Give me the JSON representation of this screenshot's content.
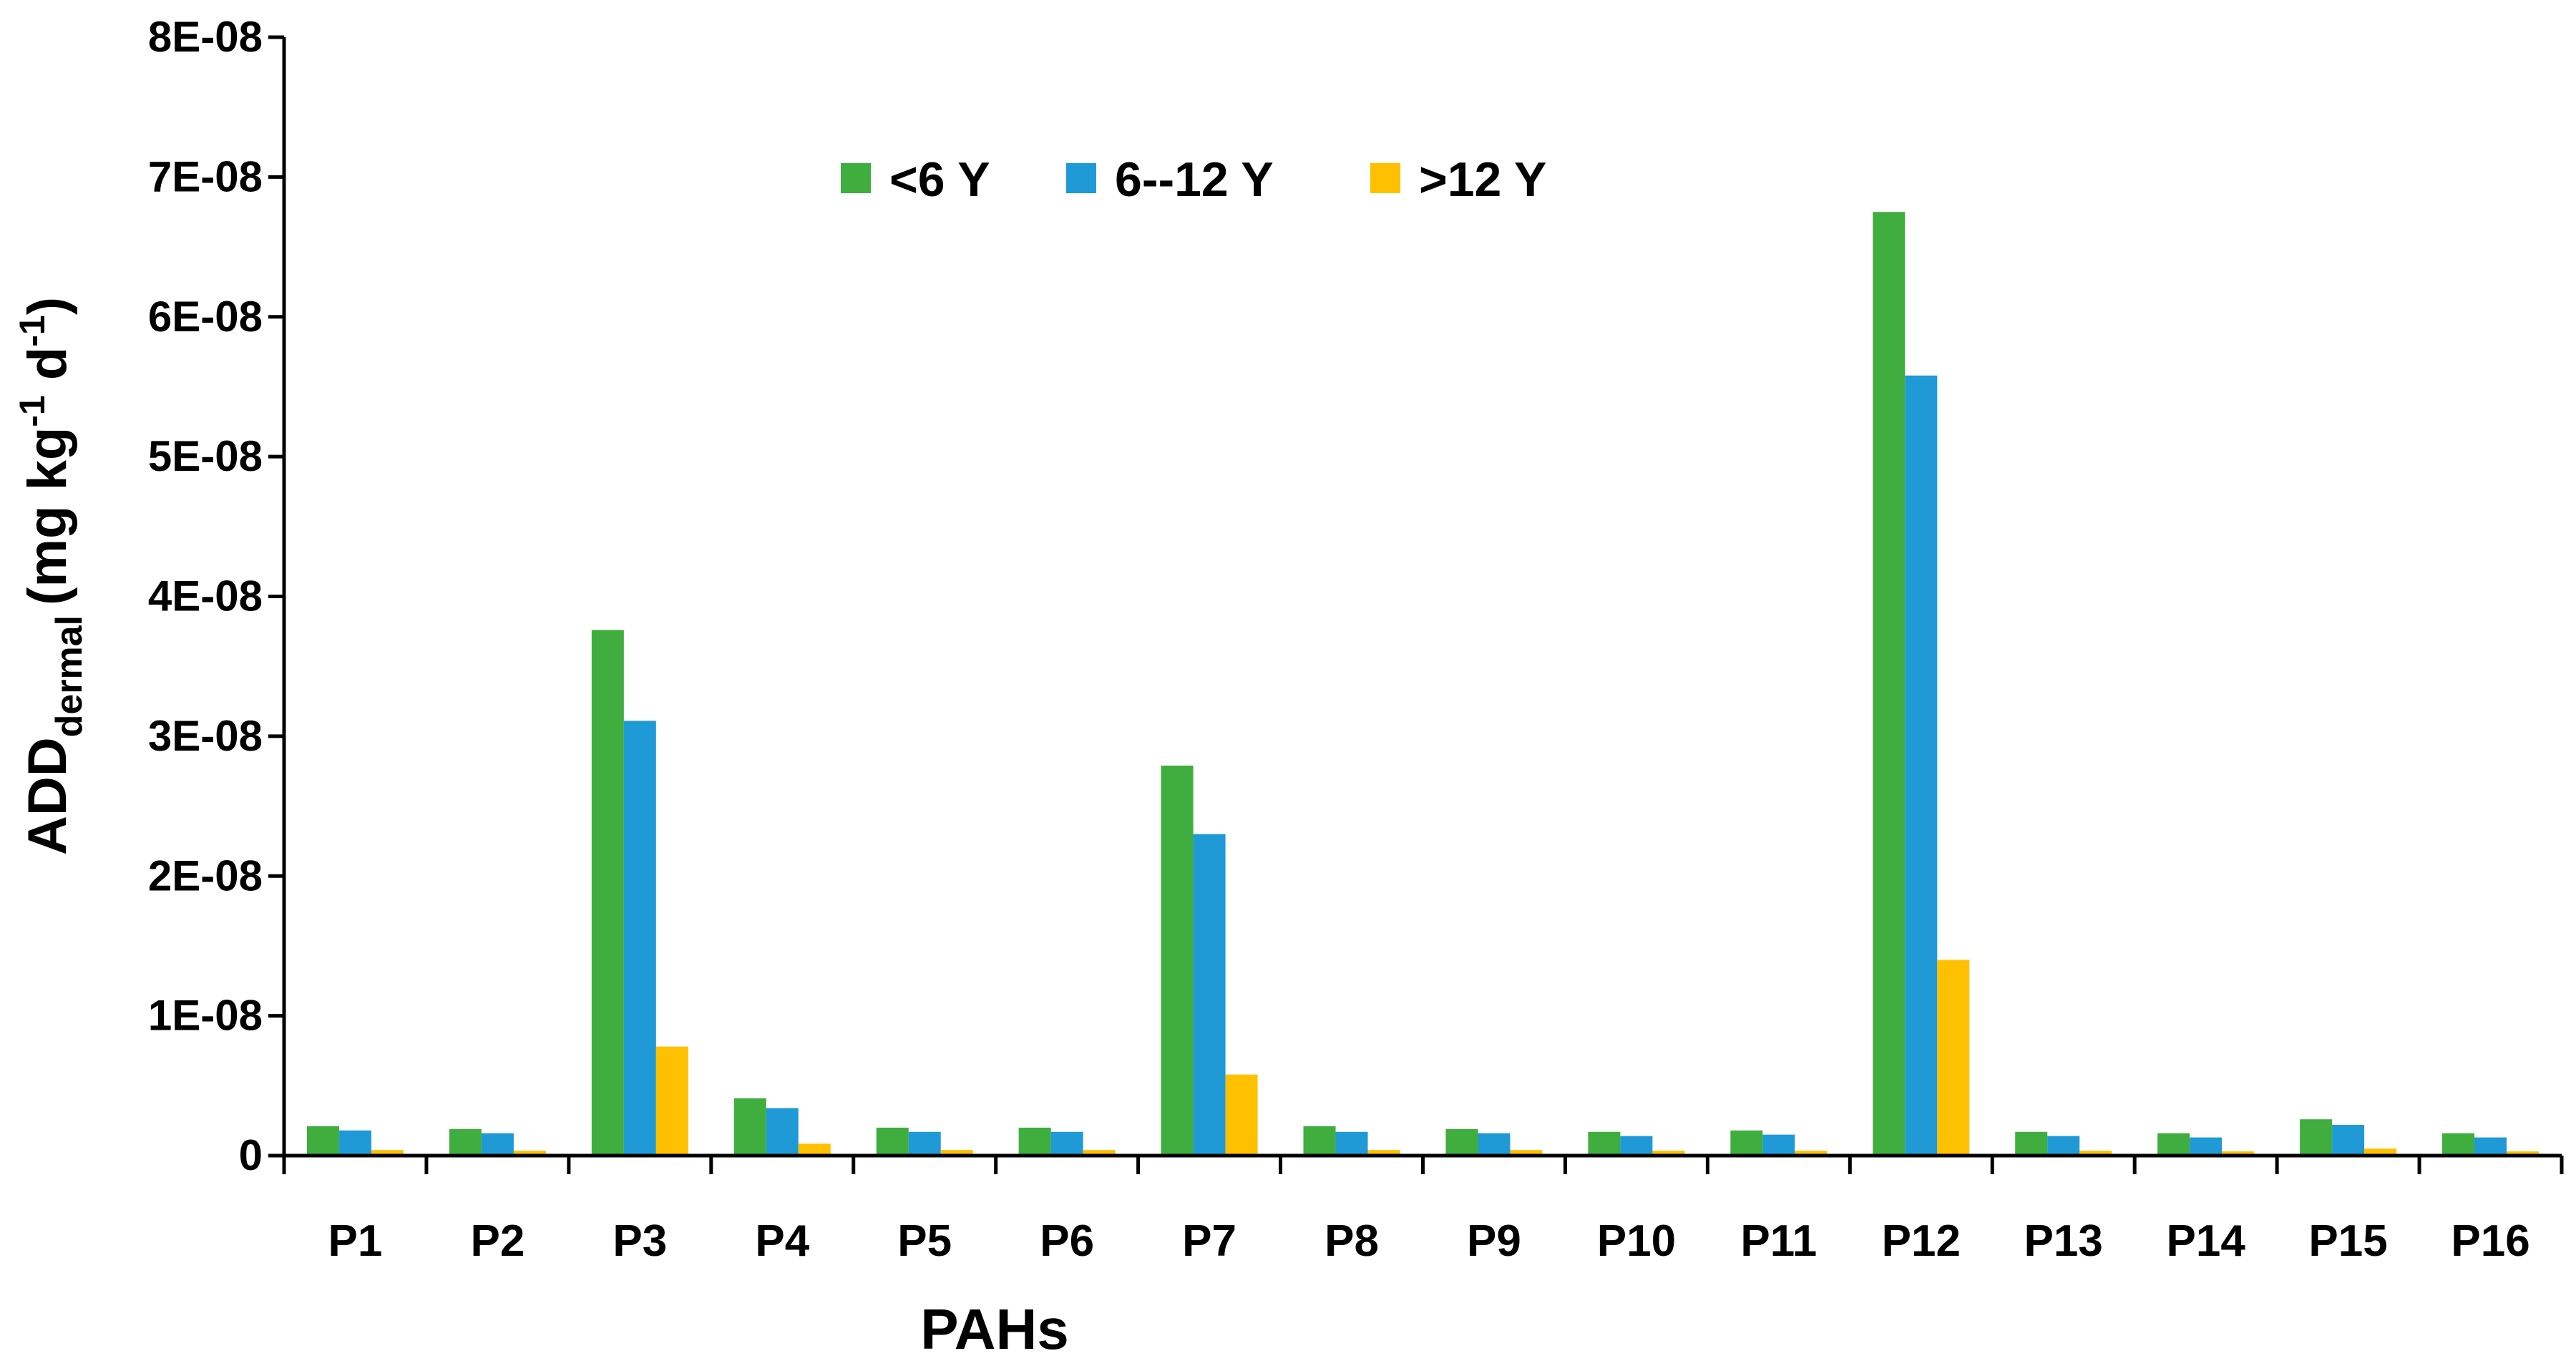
{
  "chart_data": {
    "type": "bar",
    "title": "",
    "xlabel": "PAHs",
    "ylabel": {
      "main": "ADD",
      "sub": "dermal",
      "units_prefix": "(mg kg",
      "units_sup1": "-1",
      "units_mid": " d",
      "units_sup2": "-1",
      "units_suffix": ")"
    },
    "ylim": [
      0,
      8e-08
    ],
    "yticks": [
      0,
      1e-08,
      2e-08,
      3e-08,
      4e-08,
      5e-08,
      6e-08,
      7e-08,
      8e-08
    ],
    "ytick_labels": [
      "0",
      "1E-08",
      "2E-08",
      "3E-08",
      "4E-08",
      "5E-08",
      "6E-08",
      "7E-08",
      "8E-08"
    ],
    "grid": false,
    "legend_position": "top-center",
    "categories": [
      "P1",
      "P2",
      "P3",
      "P4",
      "P5",
      "P6",
      "P7",
      "P8",
      "P9",
      "P10",
      "P11",
      "P12",
      "P13",
      "P14",
      "P15",
      "P16"
    ],
    "series": [
      {
        "name": "<6 Y",
        "color": "#3fae3f",
        "values": [
          2.1e-09,
          1.9e-09,
          3.76e-08,
          4.1e-09,
          2e-09,
          2e-09,
          2.79e-08,
          2.1e-09,
          1.9e-09,
          1.7e-09,
          1.8e-09,
          6.75e-08,
          1.7e-09,
          1.6e-09,
          2.6e-09,
          1.6e-09
        ]
      },
      {
        "name": "6--12 Y",
        "color": "#1f9ad6",
        "values": [
          1.8e-09,
          1.6e-09,
          3.11e-08,
          3.4e-09,
          1.7e-09,
          1.7e-09,
          2.3e-08,
          1.7e-09,
          1.6e-09,
          1.4e-09,
          1.5e-09,
          5.58e-08,
          1.4e-09,
          1.3e-09,
          2.2e-09,
          1.3e-09
        ]
      },
      {
        "name": ">12 Y",
        "color": "#ffc000",
        "values": [
          4e-10,
          3.5e-10,
          7.8e-09,
          8.5e-10,
          4e-10,
          4e-10,
          5.8e-09,
          4e-10,
          4e-10,
          3.5e-10,
          3.5e-10,
          1.4e-08,
          3.5e-10,
          3e-10,
          5e-10,
          3e-10
        ]
      }
    ]
  }
}
